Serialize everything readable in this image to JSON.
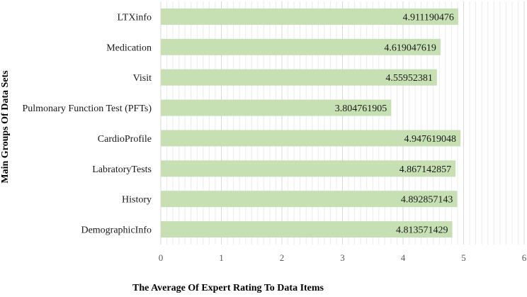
{
  "chart_data": {
    "type": "bar",
    "orientation": "horizontal",
    "categories": [
      "LTXinfo",
      "Medication",
      "Visit",
      "Pulmonary Function Test (PFTs)",
      "CardioProfile",
      "LabratoryTests",
      "History",
      "DemographicInfo"
    ],
    "values": [
      4.911190476,
      4.619047619,
      4.55952381,
      3.804761905,
      4.947619048,
      4.867142857,
      4.892857143,
      4.813571429
    ],
    "value_labels": [
      "4.911190476",
      "4.619047619",
      "4.55952381",
      "3.804761905",
      "4.947619048",
      "4.867142857",
      "4.892857143",
      "4.813571429"
    ],
    "title": "",
    "xlabel": "The Average Of Expert Rating To Data Items",
    "ylabel": "Main Groups Of Data Sets",
    "xlim": [
      0,
      6
    ],
    "xticks": [
      "0",
      "1",
      "2",
      "3",
      "4",
      "5",
      "6"
    ],
    "grid": "vertical",
    "legend": "none",
    "colors": {
      "bar": "#c6e0b4",
      "grid_major": "#d9d9d9",
      "grid_minor": "#ececec",
      "text": "#1a1a1a"
    }
  }
}
